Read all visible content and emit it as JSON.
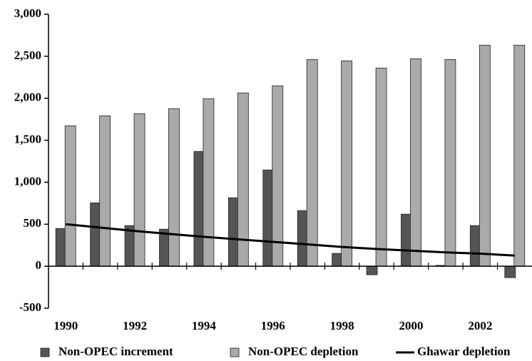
{
  "chart_data": {
    "type": "bar",
    "categories": [
      "1990",
      null,
      "1992",
      null,
      "1994",
      null,
      "1996",
      null,
      "1998",
      null,
      "2000",
      null,
      "2002",
      null
    ],
    "series": [
      {
        "name": "Non-OPEC increment",
        "color": "#555555",
        "values": [
          450,
          755,
          484,
          441,
          1367,
          815,
          1146,
          662,
          153,
          -102,
          620,
          10,
          484,
          -136
        ]
      },
      {
        "name": "Non-OPEC depletion",
        "color": "#a8aaab",
        "values": [
          1672,
          1791,
          1817,
          1876,
          1995,
          2063,
          2148,
          2462,
          2445,
          2360,
          2470,
          2462,
          2632,
          2632
        ]
      },
      {
        "name": "Ghawar depletion",
        "type": "line",
        "color": "#000000",
        "values": [
          500,
          460,
          420,
          385,
          350,
          320,
          290,
          260,
          230,
          205,
          185,
          165,
          150,
          127
        ]
      }
    ],
    "ylim": [
      -500,
      3000
    ],
    "yticks": [
      -500,
      0,
      500,
      {
        "value": 1000,
        "label": "1,000"
      },
      {
        "value": 1500,
        "label": "1,500"
      },
      {
        "value": 2000,
        "label": "2,000"
      },
      {
        "value": 2500,
        "label": "2,500"
      },
      {
        "value": 3000,
        "label": "3,000"
      }
    ],
    "grid": false,
    "legend": "bottom"
  }
}
